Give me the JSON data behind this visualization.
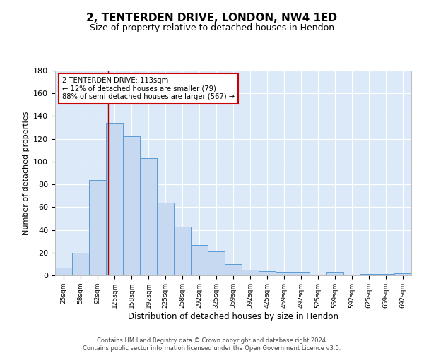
{
  "title": "2, TENTERDEN DRIVE, LONDON, NW4 1ED",
  "subtitle": "Size of property relative to detached houses in Hendon",
  "xlabel": "Distribution of detached houses by size in Hendon",
  "ylabel": "Number of detached properties",
  "categories": [
    "25sqm",
    "58sqm",
    "92sqm",
    "125sqm",
    "158sqm",
    "192sqm",
    "225sqm",
    "258sqm",
    "292sqm",
    "325sqm",
    "359sqm",
    "392sqm",
    "425sqm",
    "459sqm",
    "492sqm",
    "525sqm",
    "559sqm",
    "592sqm",
    "625sqm",
    "659sqm",
    "692sqm"
  ],
  "values": [
    7,
    20,
    84,
    134,
    122,
    103,
    64,
    43,
    27,
    21,
    10,
    5,
    4,
    3,
    3,
    0,
    3,
    0,
    1,
    1,
    2
  ],
  "bar_color": "#c6d9f0",
  "bar_edge_color": "#5b9bd5",
  "background_color": "#ffffff",
  "plot_bg_color": "#dce9f8",
  "grid_color": "#ffffff",
  "annotation_box_text": "2 TENTERDEN DRIVE: 113sqm\n← 12% of detached houses are smaller (79)\n88% of semi-detached houses are larger (567) →",
  "annotation_box_color": "#ffffff",
  "annotation_box_edge_color": "#cc0000",
  "vline_color": "#aa0000",
  "vline_x": 2.62,
  "ylim": [
    0,
    180
  ],
  "yticks": [
    0,
    20,
    40,
    60,
    80,
    100,
    120,
    140,
    160,
    180
  ],
  "footer_line1": "Contains HM Land Registry data © Crown copyright and database right 2024.",
  "footer_line2": "Contains public sector information licensed under the Open Government Licence v3.0."
}
